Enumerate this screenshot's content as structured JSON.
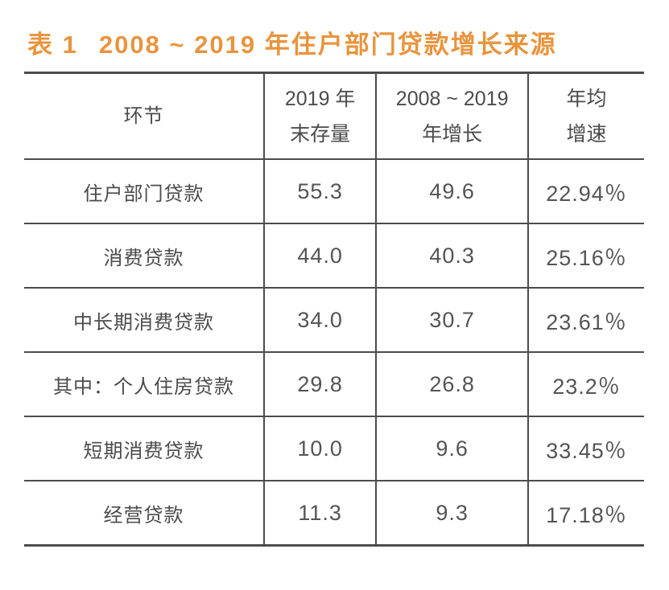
{
  "title": {
    "tag": "表 1",
    "text": "2008 ~ 2019 年住户部门贷款增长来源",
    "color": "#e8943e"
  },
  "table": {
    "header": {
      "col1": "环节",
      "col2_line1": "2019 年",
      "col2_line2": "末存量",
      "col3_line1": "2008 ~ 2019",
      "col3_line2": "年增长",
      "col4_line1": "年均",
      "col4_line2": "增速"
    },
    "rows": [
      {
        "label": "住户部门贷款",
        "stock": "55.3",
        "growth": "49.6",
        "rate": "22.94％"
      },
      {
        "label": "消费贷款",
        "stock": "44.0",
        "growth": "40.3",
        "rate": "25.16％"
      },
      {
        "label": "中长期消费贷款",
        "stock": "34.0",
        "growth": "30.7",
        "rate": "23.61％"
      },
      {
        "label": "其中：个人住房贷款",
        "stock": "29.8",
        "growth": "26.8",
        "rate": "23.2％"
      },
      {
        "label": "短期消费贷款",
        "stock": "10.0",
        "growth": "9.6",
        "rate": "33.45％"
      },
      {
        "label": "经营贷款",
        "stock": "11.3",
        "growth": "9.3",
        "rate": "17.18％"
      }
    ]
  },
  "chart_data": {
    "type": "table",
    "title": "表 1 2008 ~ 2019 年住户部门贷款增长来源",
    "columns": [
      "环节",
      "2019 年末存量",
      "2008 ~ 2019 年增长",
      "年均增速"
    ],
    "rows": [
      [
        "住户部门贷款",
        55.3,
        49.6,
        "22.94%"
      ],
      [
        "消费贷款",
        44.0,
        40.3,
        "25.16%"
      ],
      [
        "中长期消费贷款",
        34.0,
        30.7,
        "23.61%"
      ],
      [
        "其中：个人住房贷款",
        29.8,
        26.8,
        "23.2%"
      ],
      [
        "短期消费贷款",
        10.0,
        9.6,
        "33.45%"
      ],
      [
        "经营贷款",
        11.3,
        9.3,
        "17.18%"
      ]
    ]
  }
}
